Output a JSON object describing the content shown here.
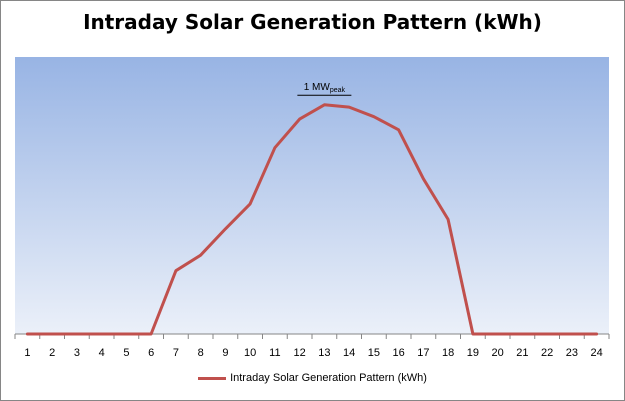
{
  "chart_data": {
    "type": "line",
    "title": "Intraday Solar Generation Pattern (kWh)",
    "xlabel": "",
    "ylabel": "",
    "categories": [
      "1",
      "2",
      "3",
      "4",
      "5",
      "6",
      "7",
      "8",
      "9",
      "10",
      "11",
      "12",
      "13",
      "14",
      "15",
      "16",
      "17",
      "18",
      "19",
      "20",
      "21",
      "22",
      "23",
      "24"
    ],
    "series": [
      {
        "name": "Intraday Solar Generation Pattern (kWh)",
        "color": "#c0504d",
        "values": [
          0,
          0,
          0,
          0,
          0,
          0,
          265,
          330,
          440,
          545,
          780,
          900,
          960,
          950,
          910,
          855,
          650,
          480,
          0,
          0,
          0,
          0,
          0,
          0
        ]
      }
    ],
    "ylim": [
      0,
      1160
    ],
    "y_axis_visible": false,
    "grid": false,
    "legend_position": "bottom",
    "plot_background": "gradient-blue",
    "annotations": [
      {
        "text": "1 MW",
        "subscript": "peak",
        "x": "13",
        "y": 1000
      }
    ]
  }
}
